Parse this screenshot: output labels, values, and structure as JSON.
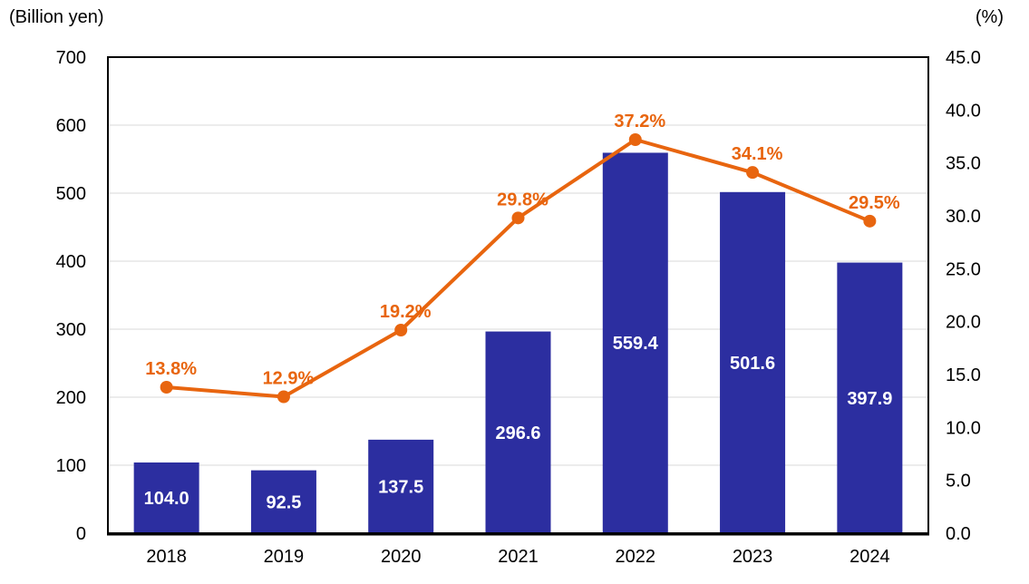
{
  "chart_data": {
    "type": "bar+line",
    "title": "",
    "legend": "none",
    "categories": [
      "2018",
      "2019",
      "2020",
      "2021",
      "2022",
      "2023",
      "2024"
    ],
    "bar": {
      "axis": "left",
      "unit": "Billion yen",
      "color": "#2C2EA0",
      "label_color": "#FFFFFF",
      "values": [
        104.0,
        92.5,
        137.5,
        296.6,
        559.4,
        501.6,
        397.9
      ],
      "labels": [
        "104.0",
        "92.5",
        "137.5",
        "296.6",
        "559.4",
        "501.6",
        "397.9"
      ]
    },
    "line": {
      "axis": "right",
      "unit": "%",
      "color": "#E8650F",
      "marker": "circle",
      "values": [
        13.8,
        12.9,
        19.2,
        29.8,
        37.2,
        34.1,
        29.5
      ],
      "labels": [
        "13.8%",
        "12.9%",
        "19.2%",
        "29.8%",
        "37.2%",
        "34.1%",
        "29.5%"
      ]
    },
    "left_axis": {
      "title": "(Billion yen)",
      "min": 0,
      "max": 700,
      "step": 100,
      "ticks": [
        "0",
        "100",
        "200",
        "300",
        "400",
        "500",
        "600",
        "700"
      ]
    },
    "right_axis": {
      "title": "(%)",
      "min": 0,
      "max": 45,
      "step": 5,
      "ticks": [
        "0.0",
        "5.0",
        "10.0",
        "15.0",
        "20.0",
        "25.0",
        "30.0",
        "35.0",
        "40.0",
        "45.0"
      ]
    },
    "grid": {
      "show": true,
      "color": "#D9D9D9",
      "follows": "left-axis"
    },
    "plot_border_color": "#000000",
    "tick_text_color": "#000000",
    "background": "#FFFFFF"
  }
}
